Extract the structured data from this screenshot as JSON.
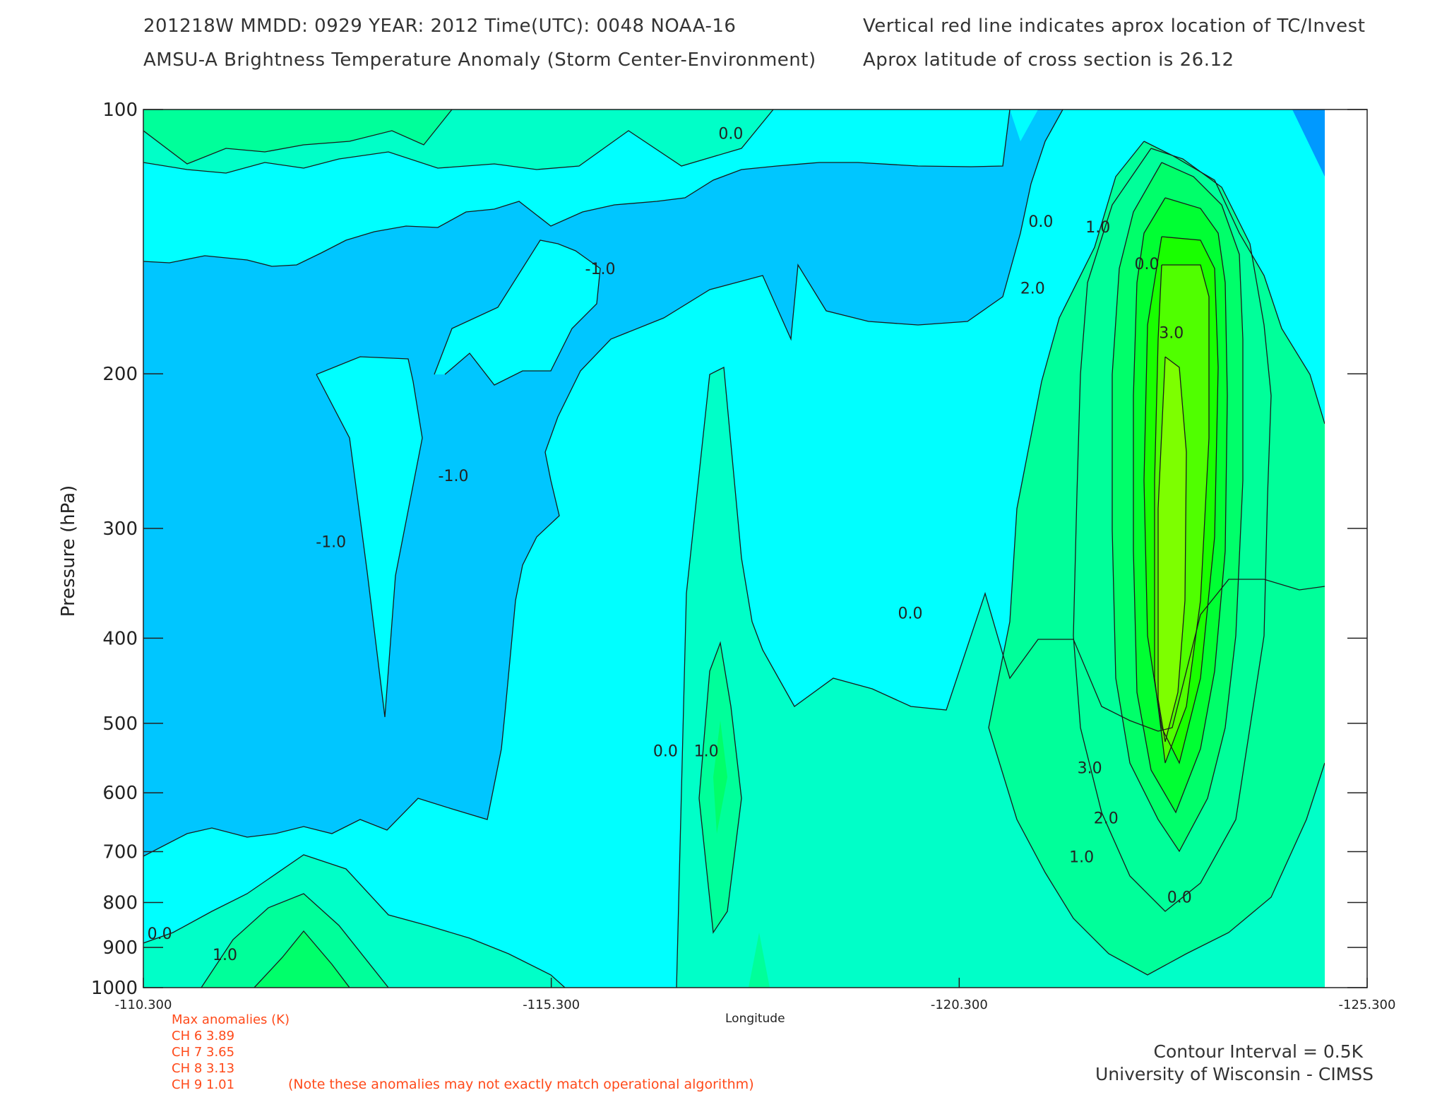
{
  "header": {
    "line1": "201218W  MMDD: 0929 YEAR: 2012 Time(UTC): 0048 NOAA-16",
    "line2": "AMSU-A Brightness Temperature Anomaly (Storm Center-Environment)",
    "line3": "Vertical red line indicates aprox location of TC/Invest",
    "line4": "Aprox latitude of cross section is 26.12"
  },
  "chart_data": {
    "type": "heatmap",
    "title": "AMSU-A Brightness Temperature Anomaly (Storm Center-Environment)",
    "xlabel": "Longitude",
    "ylabel": "Pressure (hPa)",
    "x_ticks": [
      "-110.300",
      "-115.300",
      "-120.300",
      "-125.300"
    ],
    "xlim": [
      -110.3,
      -125.3
    ],
    "y_ticks": [
      "100",
      "200",
      "300",
      "400",
      "500",
      "600",
      "700",
      "800",
      "900",
      "1000"
    ],
    "ylim": [
      1000,
      100
    ],
    "y_scale": "log",
    "contour_interval": 0.5,
    "contour_labels": [
      {
        "text": "0.0",
        "lon": -117.5,
        "p": 108
      },
      {
        "text": "-1.0",
        "lon": -115.9,
        "p": 154
      },
      {
        "text": "-1.0",
        "lon": -112.6,
        "p": 315
      },
      {
        "text": "-1.0",
        "lon": -114.1,
        "p": 265
      },
      {
        "text": "0.0",
        "lon": -116.7,
        "p": 545
      },
      {
        "text": "1.0",
        "lon": -117.2,
        "p": 545
      },
      {
        "text": "0.0",
        "lon": -119.7,
        "p": 380
      },
      {
        "text": "0.0",
        "lon": -121.3,
        "p": 136
      },
      {
        "text": "1.0",
        "lon": -122.0,
        "p": 138
      },
      {
        "text": "2.0",
        "lon": -121.2,
        "p": 162
      },
      {
        "text": "0.0",
        "lon": -122.6,
        "p": 152
      },
      {
        "text": "3.0",
        "lon": -122.9,
        "p": 182
      },
      {
        "text": "3.0",
        "lon": -121.9,
        "p": 570
      },
      {
        "text": "2.0",
        "lon": -122.1,
        "p": 650
      },
      {
        "text": "1.0",
        "lon": -121.8,
        "p": 720
      },
      {
        "text": "0.0",
        "lon": -123.0,
        "p": 800
      },
      {
        "text": "0.0",
        "lon": -110.5,
        "p": 880
      },
      {
        "text": "1.0",
        "lon": -111.3,
        "p": 930
      }
    ],
    "color_levels": [
      {
        "level": "<-1.5",
        "color": "#0099ff"
      },
      {
        "level": "-1.5 to -0.5",
        "color": "#00c6ff"
      },
      {
        "level": "-0.5 to 0.0",
        "color": "#00ffff"
      },
      {
        "level": "0.0 to 0.5",
        "color": "#00ffc8"
      },
      {
        "level": "0.5 to 1.0",
        "color": "#00ff9a"
      },
      {
        "level": "1.0 to 1.5",
        "color": "#00ff6a"
      },
      {
        "level": "1.5 to 2.0",
        "color": "#00ff33"
      },
      {
        "level": "2.0 to 2.5",
        "color": "#19ff00"
      },
      {
        "level": "2.5 to 3.0",
        "color": "#50ff00"
      },
      {
        "level": "3.0 to 3.5",
        "color": "#7dff00"
      },
      {
        "level": ">3.5",
        "color": "#9eff00"
      }
    ]
  },
  "max_anomalies": {
    "title": "Max anomalies (K)",
    "rows": [
      "CH 6  3.89",
      "CH 7  3.65",
      "CH 8  3.13",
      "CH 9  1.01"
    ],
    "note": "(Note these anomalies may not exactly match operational algorithm)"
  },
  "footer": {
    "interval": "Contour Interval = 0.5K",
    "credit": "University of Wisconsin - CIMSS"
  }
}
